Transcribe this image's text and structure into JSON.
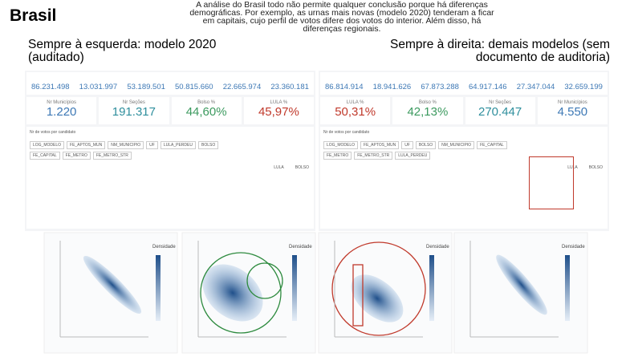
{
  "header": {
    "title": "Brasil",
    "note": "A análise do Brasil todo não permite qualquer conclusão porque há diferenças demográficas. Por exemplo, as urnas mais novas (modelo 2020) tenderam a ficar em capitais, cujo perfil de votos difere dos votos do interior. Além disso, há diferenças regionais."
  },
  "panels": [
    {
      "heading": "Sempre à esquerda: modelo 2020 (auditado)",
      "stats": [
        "86.231.498",
        "13.031.997",
        "53.189.501",
        "50.815.660",
        "22.665.974",
        "23.360.181"
      ],
      "kpis": [
        {
          "label": "Nr Municípios",
          "value": "1.220",
          "color": "#3d78b5"
        },
        {
          "label": "Nr Seções",
          "value": "191.317",
          "color": "#2f8f9d"
        },
        {
          "label": "Bolso %",
          "value": "44,60%",
          "color": "#3c9a5f"
        },
        {
          "label": "LULA %",
          "value": "45,97%",
          "color": "#c0392b"
        }
      ],
      "table": {
        "title": "Nr de votos por candidato",
        "filters": [
          "LOG_MODELO",
          "FE_APTOS_MUN",
          "NM_MUNICIPIO",
          "UF",
          "LULA_PERDEU",
          "BOLSO",
          "FE_CAPITAL",
          "FE_METRO",
          "FE_METRO_STR"
        ],
        "columns": [
          "LULA",
          "BOLSO"
        ]
      },
      "plot_legend": [
        "Densidade",
        "Densidade"
      ]
    },
    {
      "heading": "Sempre à direita: demais modelos (sem documento de auditoria)",
      "stats": [
        "86.814.914",
        "18.941.626",
        "67.873.288",
        "64.917.146",
        "27.347.044",
        "32.659.199"
      ],
      "kpis": [
        {
          "label": "LULA %",
          "value": "50,31%",
          "color": "#c0392b"
        },
        {
          "label": "Bolso %",
          "value": "42,13%",
          "color": "#3c9a5f"
        },
        {
          "label": "Nr Seções",
          "value": "270.447",
          "color": "#2f8f9d"
        },
        {
          "label": "Nr Municípios",
          "value": "4.550",
          "color": "#3d78b5"
        }
      ],
      "table": {
        "title": "Nr de votos por candidato",
        "filters": [
          "LOG_MODELO",
          "FE_APTOS_MUN",
          "UF",
          "BOLSO",
          "NM_MUNICIPIO",
          "FE_CAPITAL",
          "FE_METRO",
          "FE_METRO_STR",
          "LULA_PERDEU"
        ],
        "columns": [
          "LULA",
          "BOLSO"
        ]
      },
      "plot_legend": [
        "Densidade",
        "Densidade"
      ]
    }
  ]
}
